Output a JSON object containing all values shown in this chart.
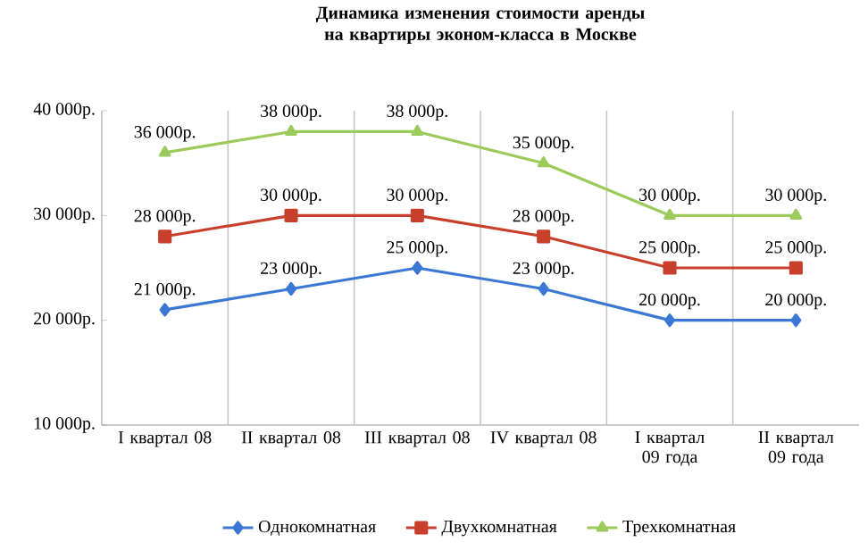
{
  "chart_data": {
    "type": "line",
    "title": "Динамика изменения стоимости аренды  на квартиры эконом-класса в Москве",
    "categories": [
      "I квартал 08",
      "II квартал 08",
      "III квартал 08",
      "IV квартал 08",
      "I квартал 09 года",
      "II квартал 09 года"
    ],
    "series": [
      {
        "name": "Однокомнатная",
        "color": "#3a78d4",
        "marker": "diamond",
        "values": [
          21000,
          23000,
          25000,
          23000,
          20000,
          20000
        ],
        "value_labels": [
          "21 000р.",
          "23 000р.",
          "25 000р.",
          "23 000р.",
          "20 000р.",
          "20 000р."
        ]
      },
      {
        "name": "Двухкомнатная",
        "color": "#c8402c",
        "marker": "square",
        "values": [
          28000,
          30000,
          30000,
          28000,
          25000,
          25000
        ],
        "value_labels": [
          "28 000р.",
          "30 000р.",
          "30 000р.",
          "28 000р.",
          "25 000р.",
          "25 000р."
        ]
      },
      {
        "name": "Трехкомнатная",
        "color": "#9bcb5b",
        "marker": "triangle",
        "values": [
          36000,
          38000,
          38000,
          35000,
          30000,
          30000
        ],
        "value_labels": [
          "36 000р.",
          "38 000р.",
          "38 000р.",
          "35 000р.",
          "30 000р.",
          "30 000р."
        ]
      }
    ],
    "ylim": [
      10000,
      40000
    ],
    "yticks": [
      {
        "value": 10000,
        "label": "10 000р."
      },
      {
        "value": 20000,
        "label": "20 000р."
      },
      {
        "value": 30000,
        "label": "30 000р."
      },
      {
        "value": 40000,
        "label": "40 000р."
      }
    ],
    "grid": "x",
    "legend": "bottom",
    "line_style": "solid"
  }
}
